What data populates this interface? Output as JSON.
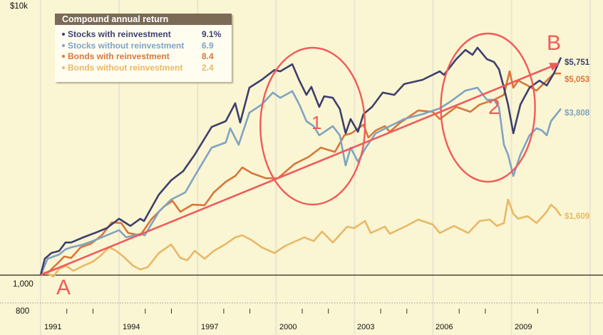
{
  "chart_data": {
    "type": "line",
    "title": "Compound annual return",
    "y_scale": "log",
    "ylim": [
      800,
      10000
    ],
    "xlim": [
      1991,
      2012
    ],
    "y_tick_labels": [
      "$10k",
      "1,000",
      "800"
    ],
    "x_tick_labels": [
      "1991",
      "1994",
      "1997",
      "2000",
      "2003",
      "2006",
      "2009"
    ],
    "legend_placement": "top-left",
    "series": [
      {
        "name": "Stocks with reinvestment",
        "return": "9.1%",
        "color": "#3d3f6e",
        "end_label": "$5,751",
        "x": [
          1991.0,
          1991.16,
          1991.41,
          1991.71,
          1991.95,
          1992.17,
          1992.63,
          1993.07,
          1993.53,
          1994.0,
          1994.43,
          1994.81,
          1994.95,
          1995.52,
          1995.99,
          1996.45,
          1996.89,
          1997.54,
          1998.08,
          1998.44,
          1998.63,
          1998.98,
          1999.45,
          1999.94,
          2000.16,
          2000.62,
          2000.89,
          2001.16,
          2001.35,
          2001.65,
          2001.84,
          2002.17,
          2002.44,
          2002.66,
          2002.85,
          2003.13,
          2003.34,
          2003.67,
          2004.08,
          2004.52,
          2004.9,
          2005.6,
          2006.26,
          2006.42,
          2006.89,
          2007.24,
          2007.51,
          2007.7,
          2008.06,
          2008.33,
          2008.52,
          2008.71,
          2008.87,
          2009.07,
          2009.34,
          2009.69,
          2010.07,
          2010.35,
          2010.62,
          2010.89
        ],
        "y": [
          1000,
          1141,
          1194,
          1215,
          1300,
          1300,
          1355,
          1403,
          1459,
          1573,
          1485,
          1573,
          1545,
          1910,
          2142,
          2307,
          2632,
          3290,
          3446,
          3981,
          3407,
          4510,
          4805,
          5203,
          5143,
          5447,
          4775,
          4257,
          4539,
          3865,
          4209,
          4159,
          3800,
          3126,
          3505,
          3162,
          3648,
          3865,
          4335,
          4257,
          4645,
          4805,
          5143,
          5000,
          5675,
          6109,
          5875,
          6220,
          5675,
          5546,
          5236,
          4510,
          3936,
          3126,
          3936,
          4510,
          4775,
          4592,
          5058,
          5751
        ]
      },
      {
        "name": "Stocks without reinvestment",
        "return": "6.9",
        "color": "#7fa3c3",
        "end_label": "$3,808",
        "x": [
          1991.0,
          1991.27,
          1991.71,
          1991.95,
          1992.17,
          1992.63,
          1993.07,
          1993.53,
          1994.0,
          1994.27,
          1994.81,
          1994.98,
          1995.52,
          1995.99,
          1996.53,
          1996.89,
          1997.54,
          1998.08,
          1998.25,
          1998.57,
          1998.98,
          1999.45,
          1999.88,
          2000.16,
          2000.62,
          2000.89,
          2001.16,
          2001.44,
          2001.65,
          2002.17,
          2002.44,
          2002.66,
          2002.85,
          2003.13,
          2003.43,
          2003.81,
          2004.35,
          2004.9,
          2005.6,
          2006.26,
          2006.69,
          2007.24,
          2007.7,
          2008.06,
          2008.33,
          2008.52,
          2008.71,
          2008.87,
          2009.07,
          2009.34,
          2009.69,
          2009.96,
          2010.16,
          2010.35,
          2010.51,
          2010.89
        ],
        "y": [
          1000,
          1141,
          1181,
          1230,
          1250,
          1279,
          1324,
          1377,
          1435,
          1355,
          1394,
          1377,
          1664,
          1835,
          1945,
          2218,
          2786,
          2904,
          3254,
          2851,
          3690,
          3936,
          4335,
          4159,
          4385,
          3936,
          3446,
          3311,
          3076,
          3311,
          3076,
          2415,
          2786,
          2488,
          2786,
          3126,
          3311,
          3505,
          3648,
          3819,
          4046,
          4406,
          4510,
          4093,
          4093,
          3865,
          2851,
          2632,
          2218,
          2632,
          3076,
          3254,
          3199,
          3076,
          3446,
          3808
        ]
      },
      {
        "name": "Bonds with reinvestment",
        "return": "8.4",
        "color": "#d8763a",
        "end_label": "$5,053",
        "x": [
          1991.0,
          1991.35,
          1991.71,
          1991.9,
          1992.17,
          1992.53,
          1992.91,
          1993.34,
          1993.72,
          1994.08,
          1994.35,
          1994.81,
          1995.25,
          1995.71,
          1996.04,
          1996.34,
          1996.8,
          1997.27,
          1997.62,
          1998.08,
          1998.44,
          1998.71,
          1999.07,
          1999.61,
          2000.07,
          2000.7,
          2001.25,
          2001.71,
          2002.25,
          2002.61,
          2002.88,
          2003.34,
          2003.53,
          2003.81,
          2004.16,
          2004.35,
          2004.71,
          2005.44,
          2005.99,
          2006.26,
          2006.89,
          2007.43,
          2007.78,
          2008.33,
          2008.71,
          2008.93,
          2009.07,
          2009.26,
          2009.61,
          2009.96,
          2010.35,
          2010.62,
          2010.89
        ],
        "y": [
          1000,
          1035,
          1114,
          1161,
          1148,
          1250,
          1285,
          1377,
          1528,
          1520,
          1403,
          1377,
          1573,
          1734,
          1815,
          1664,
          1762,
          1754,
          1945,
          2118,
          2218,
          2376,
          2270,
          2178,
          2178,
          2443,
          2588,
          2786,
          2692,
          3076,
          3126,
          3350,
          3020,
          3199,
          3311,
          3162,
          3388,
          3758,
          3715,
          3505,
          3865,
          3715,
          3936,
          4093,
          4257,
          5143,
          4510,
          4775,
          4592,
          4406,
          4775,
          5058,
          5053
        ]
      },
      {
        "name": "Bonds without reinvestment",
        "return": "2.4",
        "color": "#e9b866",
        "end_label": "$1,609",
        "x": [
          1991.0,
          1991.16,
          1991.49,
          1991.71,
          1991.98,
          1992.25,
          1992.63,
          1992.99,
          1993.26,
          1993.62,
          1993.89,
          1994.16,
          1994.54,
          1994.81,
          1995.09,
          1995.52,
          1995.99,
          1996.34,
          1996.61,
          1996.89,
          1997.27,
          1997.62,
          1998.08,
          1998.44,
          1998.71,
          1999.07,
          1999.45,
          1999.94,
          2000.35,
          2001.08,
          2001.44,
          2001.76,
          2002.17,
          2002.72,
          2002.99,
          2003.4,
          2003.62,
          2004.16,
          2004.35,
          2004.98,
          2005.44,
          2005.99,
          2006.26,
          2006.8,
          2007.35,
          2007.78,
          2008.17,
          2008.44,
          2008.71,
          2008.87,
          2009.07,
          2009.26,
          2009.61,
          2009.96,
          2010.35,
          2010.51,
          2010.7,
          2010.89
        ],
        "y": [
          1000,
          1023,
          989,
          1052,
          1077,
          1035,
          1077,
          1114,
          1161,
          1250,
          1215,
          1161,
          1077,
          1047,
          1065,
          1194,
          1279,
          1148,
          1127,
          1215,
          1141,
          1215,
          1285,
          1355,
          1377,
          1324,
          1250,
          1194,
          1265,
          1355,
          1315,
          1419,
          1300,
          1476,
          1459,
          1545,
          1403,
          1476,
          1394,
          1485,
          1563,
          1502,
          1403,
          1485,
          1403,
          1545,
          1563,
          1485,
          1520,
          1835,
          1637,
          1573,
          1607,
          1520,
          1664,
          1762,
          1703,
          1609
        ]
      }
    ],
    "annotations": {
      "start_label": "A",
      "end_label": "B",
      "circle_1_label": "1",
      "circle_2_label": "2",
      "arrow": {
        "from": [
          1991.0,
          1000
        ],
        "to": [
          2010.85,
          5500
        ]
      },
      "circle_1_span_years": [
        1999.4,
        2003.4
      ],
      "circle_2_span_years": [
        2006.3,
        2009.9
      ],
      "color": "#f2595a"
    }
  }
}
